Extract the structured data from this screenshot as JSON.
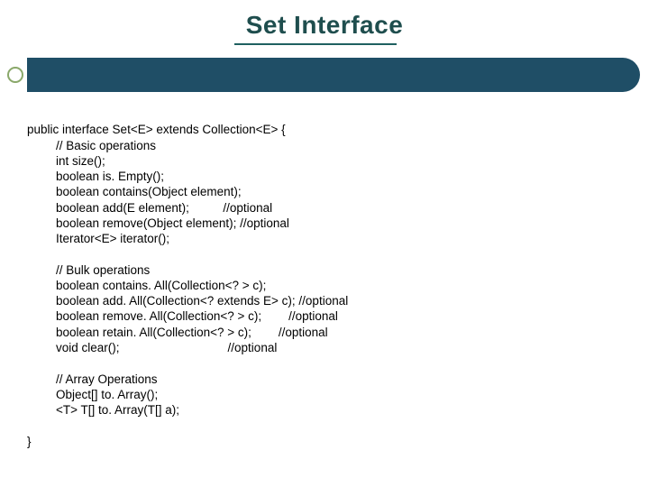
{
  "title": "Set Interface",
  "title_color": "#1f4e4e",
  "title_fontsize": 28,
  "banner_color": "#1f4e66",
  "bullet_border_color": "#8aa86a",
  "background_color": "#ffffff",
  "code": {
    "decl": "public interface Set<E> extends Collection<E> {",
    "section1_comment": "// Basic operations",
    "lines1": [
      "int size();",
      "boolean is. Empty();",
      "boolean contains(Object element);",
      "boolean add(E element);          //optional",
      "boolean remove(Object element); //optional",
      "Iterator<E> iterator();"
    ],
    "section2_comment": "// Bulk operations",
    "lines2": [
      "boolean contains. All(Collection<? > c);",
      "boolean add. All(Collection<? extends E> c); //optional",
      "boolean remove. All(Collection<? > c);        //optional",
      "boolean retain. All(Collection<? > c);        //optional",
      "void clear();                                //optional"
    ],
    "section3_comment": "// Array Operations",
    "lines3": [
      "Object[] to. Array();",
      "<T> T[] to. Array(T[] a);"
    ],
    "close": "}"
  },
  "code_fontsize": 13.5,
  "code_color": "#000000"
}
